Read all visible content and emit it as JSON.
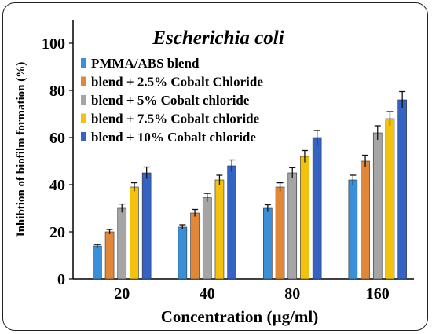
{
  "chart_data": {
    "type": "bar",
    "title": "Escherichia coli",
    "xlabel": "Concentration (µg/ml)",
    "ylabel": "Inhibtion of biofilm formation (%)",
    "ylim": [
      0,
      110
    ],
    "yticks": [
      "0",
      "20",
      "40",
      "60",
      "80",
      "100"
    ],
    "categories": [
      "20",
      "40",
      "80",
      "160"
    ],
    "legend_position": "top-left",
    "grid": false,
    "series": [
      {
        "name": "PMMA/ABS blend",
        "color": "#3a8fd6",
        "values": [
          14,
          22,
          30,
          42
        ],
        "errors": [
          0.6,
          1.0,
          1.5,
          2.0
        ]
      },
      {
        "name": "blend + 2.5% Cobalt Chloride",
        "color": "#e0873a",
        "values": [
          20,
          28,
          39,
          50
        ],
        "errors": [
          1.0,
          1.5,
          1.8,
          2.5
        ]
      },
      {
        "name": "blend + 5%    Cobalt chloride",
        "color": "#a5a5a5",
        "values": [
          30,
          34.5,
          45,
          62
        ],
        "errors": [
          1.8,
          1.8,
          2.2,
          3.0
        ]
      },
      {
        "name": "blend + 7.5% Cobalt chloride",
        "color": "#f2c20f",
        "values": [
          39,
          42,
          52,
          68
        ],
        "errors": [
          1.8,
          2.0,
          2.5,
          3.0
        ]
      },
      {
        "name": "blend + 10%  Cobalt chloride",
        "color": "#3463c3",
        "values": [
          45,
          48,
          60,
          76
        ],
        "errors": [
          2.5,
          2.5,
          3.0,
          3.5
        ]
      }
    ]
  }
}
